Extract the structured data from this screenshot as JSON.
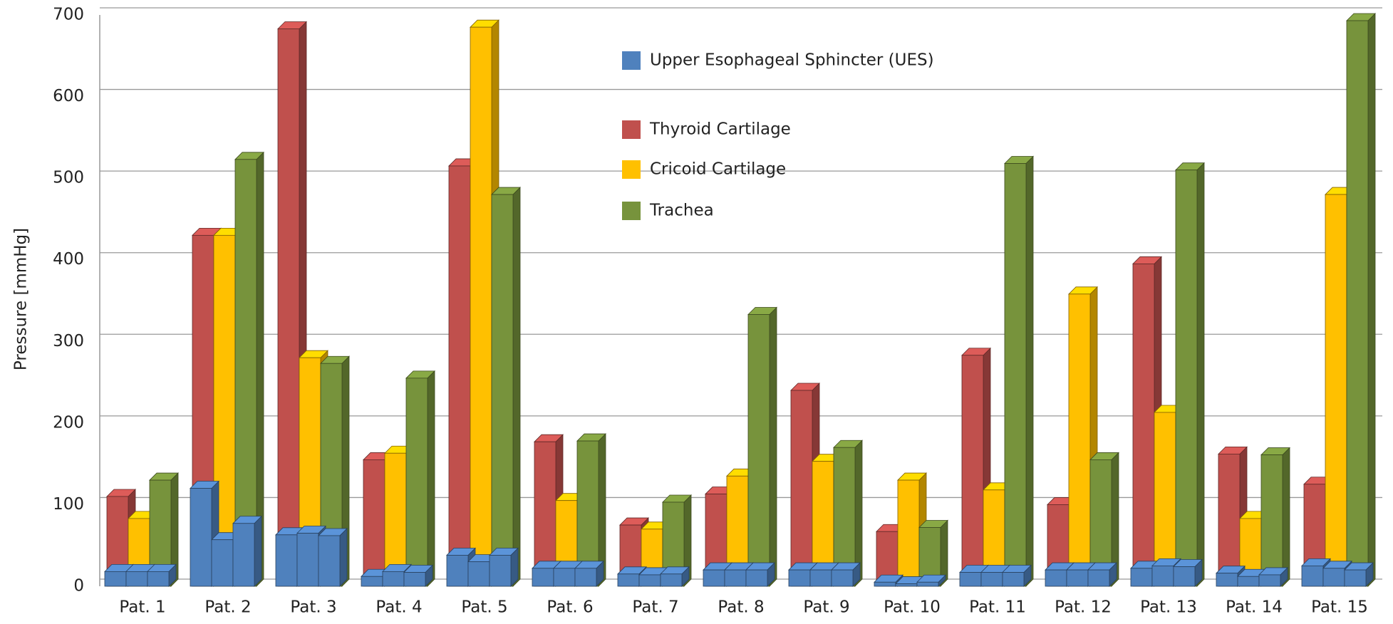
{
  "chart_data": {
    "type": "bar3d",
    "y_label": "Pressure [mmHg]",
    "categories": [
      "Pat. 1",
      "Pat. 2",
      "Pat. 3",
      "Pat. 4",
      "Pat. 5",
      "Pat. 6",
      "Pat. 7",
      "Pat. 8",
      "Pat. 9",
      "Pat. 10",
      "Pat. 11",
      "Pat. 12",
      "Pat. 13",
      "Pat. 14",
      "Pat. 15"
    ],
    "series": [
      {
        "name": "Upper Esophageal Sphincter (UES)",
        "color": "#4f81bd",
        "values": [
          [
            18,
            18,
            18
          ],
          [
            120,
            57,
            77
          ],
          [
            63,
            65,
            62
          ],
          [
            12,
            18,
            17
          ],
          [
            38,
            30,
            38
          ],
          [
            22,
            22,
            22
          ],
          [
            15,
            14,
            15
          ],
          [
            20,
            20,
            20
          ],
          [
            20,
            20,
            20
          ],
          [
            5,
            3,
            5
          ],
          [
            17,
            17,
            17
          ],
          [
            20,
            20,
            20
          ],
          [
            22,
            25,
            24
          ],
          [
            16,
            12,
            14
          ],
          [
            25,
            22,
            20
          ]
        ]
      },
      {
        "name": "Thyroid Cartilage",
        "color": "#c0504d",
        "values": [
          110,
          430,
          683,
          155,
          515,
          177,
          75,
          113,
          240,
          67,
          283,
          100,
          395,
          162,
          125
        ]
      },
      {
        "name": "Cricoid Cartilage",
        "color": "#ffc000",
        "values": [
          83,
          430,
          280,
          163,
          685,
          105,
          70,
          135,
          153,
          130,
          118,
          358,
          213,
          83,
          480
        ]
      },
      {
        "name": "Trachea",
        "color": "#77933c",
        "values": [
          130,
          523,
          273,
          255,
          480,
          178,
          103,
          333,
          170,
          72,
          518,
          155,
          510,
          161,
          693
        ]
      }
    ],
    "ylim": [
      0,
      700
    ],
    "yticks": [
      0,
      100,
      200,
      300,
      400,
      500,
      600,
      700
    ],
    "grid": true
  }
}
